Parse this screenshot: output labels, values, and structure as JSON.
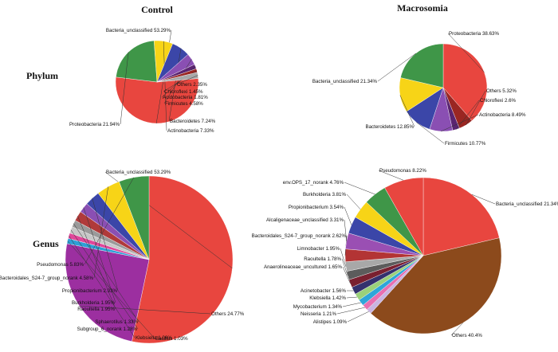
{
  "titles": {
    "control": "Control",
    "macrosomia": "Macrosomia",
    "phylum": "Phylum",
    "genus": "Genus"
  },
  "chart_data": [
    {
      "type": "pie",
      "group": "Control",
      "level": "Phylum",
      "slices": [
        {
          "label": "Bacteria_unclassified 53.29%",
          "value": 53.29,
          "color": "#e8463f"
        },
        {
          "label": "Proteobacteria 21.94%",
          "value": 21.94,
          "color": "#3f9648"
        },
        {
          "label": "Actinobacteria 7.33%",
          "value": 7.33,
          "color": "#f7d417"
        },
        {
          "label": "Bacteroidetes 7.24%",
          "value": 7.24,
          "color": "#3b46a8"
        },
        {
          "label": "Firmicutes 4.58%",
          "value": 4.58,
          "color": "#8a4fb3"
        },
        {
          "label": "Acidobacteria 1.81%",
          "value": 1.81,
          "color": "#5a2470"
        },
        {
          "label": "Chloroflexi 1.45%",
          "value": 1.45,
          "color": "#9a2622"
        },
        {
          "label": "Others 2.35%",
          "value": 2.35,
          "color": "#a8a8a8"
        }
      ]
    },
    {
      "type": "pie",
      "group": "Macrosomia",
      "level": "Phylum",
      "slices": [
        {
          "label": "Proteobacteria 38.63%",
          "value": 38.63,
          "color": "#e8463f"
        },
        {
          "label": "Others 5.32%",
          "value": 5.32,
          "color": "#9a2622"
        },
        {
          "label": "Chloroflexi 2.6%",
          "value": 2.6,
          "color": "#5a2470"
        },
        {
          "label": "Actinobacteria 8.49%",
          "value": 8.49,
          "color": "#8a4fb3"
        },
        {
          "label": "Firmicutes 10.77%",
          "value": 10.77,
          "color": "#3b46a8"
        },
        {
          "label": "Bacteroidetes 12.85%",
          "value": 12.85,
          "color": "#f7d417"
        },
        {
          "label": "Bacteria_unclassified 21.34%",
          "value": 21.34,
          "color": "#3f9648"
        }
      ]
    },
    {
      "type": "pie",
      "group": "Control",
      "level": "Genus",
      "slices": [
        {
          "label": "Bacteria_unclassified 53.29%",
          "value": 53.29,
          "color": "#e8463f"
        },
        {
          "label": "Others 24.77%",
          "value": 24.77,
          "color": "#9c2fa0"
        },
        {
          "label": "Bacillus 1.03%",
          "value": 1.03,
          "color": "#2e9fd6"
        },
        {
          "label": "Klebsiella 1.06%",
          "value": 1.06,
          "color": "#e0479a"
        },
        {
          "label": "Subgroup_6_norank 1.28%",
          "value": 1.28,
          "color": "#c7c7c7"
        },
        {
          "label": "Sphaerotilus 1.33%",
          "value": 1.33,
          "color": "#9a9a9a"
        },
        {
          "label": "Raoultella 1.95%",
          "value": 1.95,
          "color": "#b03a3a"
        },
        {
          "label": "Burkholderia 1.95%",
          "value": 1.95,
          "color": "#8a4fb3"
        },
        {
          "label": "Propionibacterium 2.93%",
          "value": 2.93,
          "color": "#3b46a8"
        },
        {
          "label": "Bacteroidales_S24-7_group_norank 4.58%",
          "value": 4.58,
          "color": "#f7d417"
        },
        {
          "label": "Pseudomonas 5.83%",
          "value": 5.83,
          "color": "#3f9648"
        }
      ]
    },
    {
      "type": "pie",
      "group": "Macrosomia",
      "level": "Genus",
      "slices": [
        {
          "label": "Bacteria_unclassified 21.34%",
          "value": 21.34,
          "color": "#e8463f"
        },
        {
          "label": "Others 40.4%",
          "value": 40.4,
          "color": "#8c4a1c"
        },
        {
          "label": "Alistipes 1.09%",
          "value": 1.09,
          "color": "#c9b4e0"
        },
        {
          "label": "Neisseria 1.21%",
          "value": 1.21,
          "color": "#e86fb0"
        },
        {
          "label": "Mycobacterium 1.34%",
          "value": 1.34,
          "color": "#2ea6d9"
        },
        {
          "label": "Klebsiella 1.42%",
          "value": 1.42,
          "color": "#9bd17a"
        },
        {
          "label": "Acinetobacter 1.56%",
          "value": 1.56,
          "color": "#34316e"
        },
        {
          "label": "Anaerolineaceae_uncultured 1.65%",
          "value": 1.65,
          "color": "#7a2030"
        },
        {
          "label": "Raoultella 1.78%",
          "value": 1.78,
          "color": "#5c5c5c"
        },
        {
          "label": "Limnobacter 1.95%",
          "value": 1.95,
          "color": "#a8a8a8"
        },
        {
          "label": "Bacteroidales_S24-7_group_norank 2.62%",
          "value": 2.62,
          "color": "#b33434"
        },
        {
          "label": "Alcaligenaceae_unclassified 3.31%",
          "value": 3.31,
          "color": "#9a4fb3"
        },
        {
          "label": "Propionibacterium 3.54%",
          "value": 3.54,
          "color": "#3b46a8"
        },
        {
          "label": "Burkholderia 3.81%",
          "value": 3.81,
          "color": "#f7d417"
        },
        {
          "label": "env.OPS_17_norank 4.76%",
          "value": 4.76,
          "color": "#3f9648"
        },
        {
          "label": "Pseudomonas 8.22%",
          "value": 8.22,
          "color": "#e8463f"
        }
      ]
    }
  ]
}
